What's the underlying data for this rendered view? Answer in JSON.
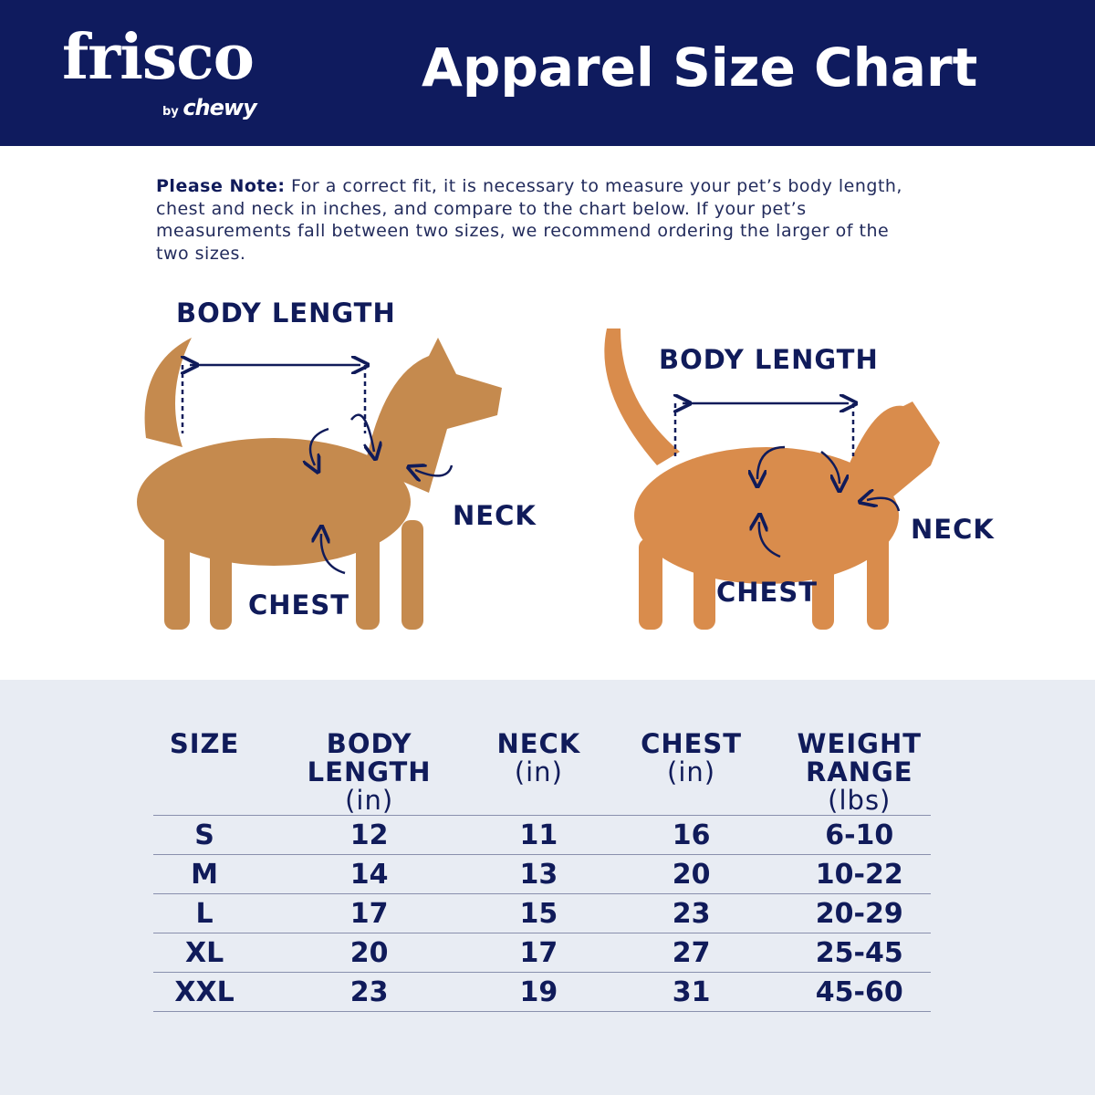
{
  "brand": {
    "logo": "frisco",
    "by": "by",
    "sub": "chewy"
  },
  "title": "Apparel Size Chart",
  "colors": {
    "navy": "#0f1b5e",
    "table_bg": "#e8ecf3"
  },
  "note": {
    "bold": "Please Note:",
    "text": " For a correct fit, it is necessary to measure your pet’s body length, chest and neck in inches, and compare to the chart below. If your pet’s measurements fall between two sizes, we recommend ordering the larger of the two sizes."
  },
  "dog": {
    "body_length": "BODY LENGTH",
    "neck": "NECK",
    "chest": "CHEST"
  },
  "cat": {
    "body_length": "BODY LENGTH",
    "neck": "NECK",
    "chest": "CHEST"
  },
  "table": {
    "headers": [
      {
        "label": "SIZE",
        "unit": ""
      },
      {
        "label": "BODY LENGTH",
        "unit": "(in)"
      },
      {
        "label": "NECK",
        "unit": "(in)"
      },
      {
        "label": "CHEST",
        "unit": "(in)"
      },
      {
        "label": "WEIGHT RANGE",
        "unit": "(lbs)"
      }
    ],
    "rows": [
      [
        "S",
        "12",
        "11",
        "16",
        "6-10"
      ],
      [
        "M",
        "14",
        "13",
        "20",
        "10-22"
      ],
      [
        "L",
        "17",
        "15",
        "23",
        "20-29"
      ],
      [
        "XL",
        "20",
        "17",
        "27",
        "25-45"
      ],
      [
        "XXL",
        "23",
        "19",
        "31",
        "45-60"
      ]
    ]
  }
}
